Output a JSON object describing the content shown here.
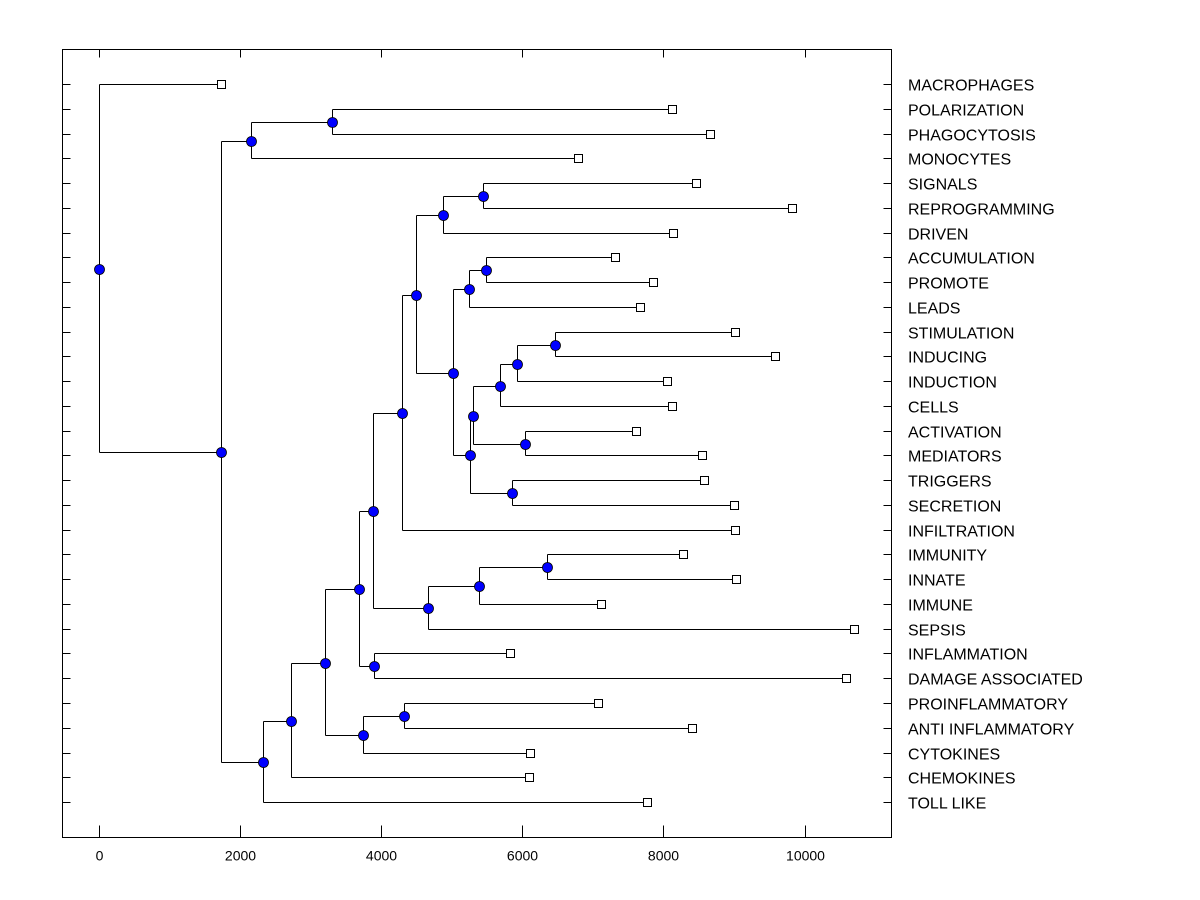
{
  "chart_data": {
    "type": "dendrogram",
    "title": "",
    "xlabel": "",
    "ylabel": "",
    "xlim": [
      -500,
      11300
    ],
    "x_ticks": [
      0,
      2000,
      4000,
      6000,
      8000,
      10000
    ],
    "x_tick_labels": [
      "0",
      "2000",
      "4000",
      "6000",
      "8000",
      "10000"
    ],
    "node_color": "#0000ff",
    "leaves": [
      {
        "label": "MACROPHAGES",
        "x": 1730
      },
      {
        "label": "POLARIZATION",
        "x": 8120
      },
      {
        "label": "PHAGOCYTOSIS",
        "x": 8660
      },
      {
        "label": "MONOCYTES",
        "x": 6790
      },
      {
        "label": "SIGNALS",
        "x": 8460
      },
      {
        "label": "REPROGRAMMING",
        "x": 9820
      },
      {
        "label": "DRIVEN",
        "x": 8140
      },
      {
        "label": "ACCUMULATION",
        "x": 7310
      },
      {
        "label": "PROMOTE",
        "x": 7850
      },
      {
        "label": "LEADS",
        "x": 7670
      },
      {
        "label": "STIMULATION",
        "x": 9010
      },
      {
        "label": "INDUCING",
        "x": 9580
      },
      {
        "label": "INDUCTION",
        "x": 8050
      },
      {
        "label": "CELLS",
        "x": 8120
      },
      {
        "label": "ACTIVATION",
        "x": 7610
      },
      {
        "label": "MEDIATORS",
        "x": 8550
      },
      {
        "label": "TRIGGERS",
        "x": 8580
      },
      {
        "label": "SECRETION",
        "x": 9000
      },
      {
        "label": "INFILTRATION",
        "x": 9010
      },
      {
        "label": "IMMUNITY",
        "x": 8280
      },
      {
        "label": "INNATE",
        "x": 9030
      },
      {
        "label": "IMMUNE",
        "x": 7120
      },
      {
        "label": "SEPSIS",
        "x": 10700
      },
      {
        "label": "INFLAMMATION",
        "x": 5830
      },
      {
        "label": "DAMAGE ASSOCIATED",
        "x": 10590
      },
      {
        "label": "PROINFLAMMATORY",
        "x": 7070
      },
      {
        "label": "ANTI INFLAMMATORY",
        "x": 8410
      },
      {
        "label": "CYTOKINES",
        "x": 6110
      },
      {
        "label": "CHEMOKINES",
        "x": 6100
      },
      {
        "label": "TOLL LIKE",
        "x": 7770
      }
    ],
    "nodes": [
      {
        "id": "n1",
        "x": 3300,
        "children": [
          "L1",
          "L2"
        ]
      },
      {
        "id": "n2",
        "x": 2150,
        "children": [
          "n1",
          "L3"
        ]
      },
      {
        "id": "n3",
        "x": 5450,
        "children": [
          "L4",
          "L5"
        ]
      },
      {
        "id": "n4",
        "x": 4870,
        "children": [
          "n3",
          "L6"
        ]
      },
      {
        "id": "n5",
        "x": 5490,
        "children": [
          "L7",
          "L8"
        ]
      },
      {
        "id": "n6",
        "x": 5250,
        "children": [
          "n5",
          "L9"
        ]
      },
      {
        "id": "n7",
        "x": 6460,
        "children": [
          "L10",
          "L11"
        ]
      },
      {
        "id": "n8",
        "x": 5920,
        "children": [
          "n7",
          "L12"
        ]
      },
      {
        "id": "n9",
        "x": 5680,
        "children": [
          "n8",
          "L13"
        ]
      },
      {
        "id": "n10",
        "x": 6040,
        "children": [
          "L14",
          "L15"
        ]
      },
      {
        "id": "n11",
        "x": 5300,
        "children": [
          "n9",
          "n10"
        ]
      },
      {
        "id": "n12",
        "x": 5850,
        "children": [
          "L16",
          "L17"
        ]
      },
      {
        "id": "n13",
        "x": 5260,
        "children": [
          "n11",
          "n12"
        ]
      },
      {
        "id": "n14",
        "x": 5020,
        "children": [
          "n6",
          "n13"
        ]
      },
      {
        "id": "n15",
        "x": 4490,
        "children": [
          "n4",
          "n14"
        ]
      },
      {
        "id": "n16",
        "x": 4300,
        "children": [
          "n15",
          "L18"
        ]
      },
      {
        "id": "n17",
        "x": 6350,
        "children": [
          "L19",
          "L20"
        ]
      },
      {
        "id": "n18",
        "x": 5380,
        "children": [
          "n17",
          "L21"
        ]
      },
      {
        "id": "n19",
        "x": 4670,
        "children": [
          "n18",
          "L22"
        ]
      },
      {
        "id": "n20",
        "x": 3880,
        "children": [
          "n16",
          "n19"
        ]
      },
      {
        "id": "n21",
        "x": 3900,
        "children": [
          "L23",
          "L24"
        ]
      },
      {
        "id": "n22",
        "x": 3690,
        "children": [
          "n20",
          "n21"
        ]
      },
      {
        "id": "n23",
        "x": 4320,
        "children": [
          "L25",
          "L26"
        ]
      },
      {
        "id": "n24",
        "x": 3740,
        "children": [
          "n23",
          "L27"
        ]
      },
      {
        "id": "n25",
        "x": 3200,
        "children": [
          "n22",
          "n24"
        ]
      },
      {
        "id": "n26",
        "x": 2720,
        "children": [
          "n25",
          "L28"
        ]
      },
      {
        "id": "n27",
        "x": 2320,
        "children": [
          "n26",
          "L29"
        ]
      },
      {
        "id": "n28",
        "x": 1730,
        "children": [
          "n2",
          "n27"
        ]
      },
      {
        "id": "root",
        "x": 0,
        "children": [
          "L0",
          "n28"
        ]
      }
    ]
  }
}
